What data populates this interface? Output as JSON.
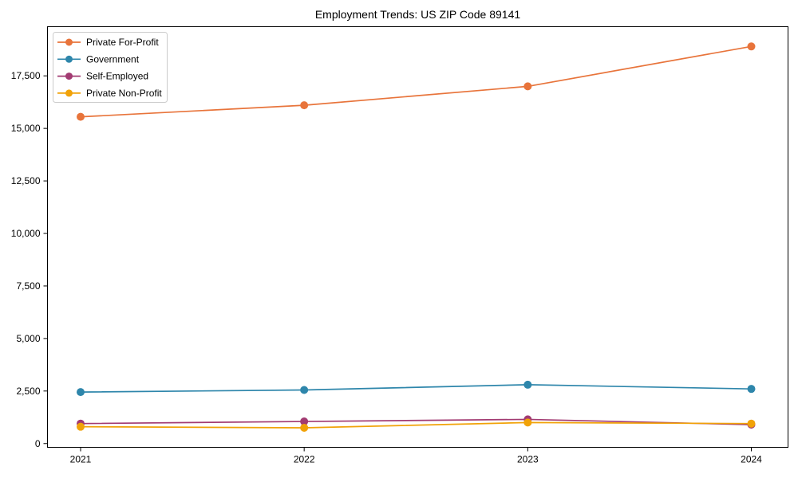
{
  "title": "Employment Trends: US ZIP Code 89141",
  "colors": {
    "private_for_profit": "#E8743B",
    "government": "#2E86AB",
    "self_employed": "#A23B72",
    "private_non_profit": "#F1A208",
    "spine": "#000000",
    "legend_border": "#cccccc",
    "text": "#000000"
  },
  "chart_data": {
    "type": "line",
    "title": "Employment Trends: US ZIP Code 89141",
    "x": [
      2021,
      2022,
      2023,
      2024
    ],
    "xtick_labels": [
      "2021",
      "2022",
      "2023",
      "2024"
    ],
    "series": [
      {
        "name": "Private For-Profit",
        "color": "#E8743B",
        "values": [
          15550,
          16100,
          17000,
          18900
        ]
      },
      {
        "name": "Government",
        "color": "#2E86AB",
        "values": [
          2450,
          2550,
          2800,
          2600
        ]
      },
      {
        "name": "Self-Employed",
        "color": "#A23B72",
        "values": [
          950,
          1050,
          1150,
          900
        ]
      },
      {
        "name": "Private Non-Profit",
        "color": "#F1A208",
        "values": [
          800,
          750,
          1000,
          950
        ]
      }
    ],
    "yticks": [
      0,
      2500,
      5000,
      7500,
      10000,
      12500,
      15000,
      17500
    ],
    "ytick_labels": [
      "0",
      "2,500",
      "5,000",
      "7,500",
      "10,000",
      "12,500",
      "15,000",
      "17,500"
    ],
    "ylim": [
      -180,
      19840
    ],
    "xlabel": "",
    "ylabel": "",
    "grid": false,
    "legend_position": "upper left",
    "marker": "circle",
    "line_width": 1.7,
    "marker_radius": 5
  }
}
